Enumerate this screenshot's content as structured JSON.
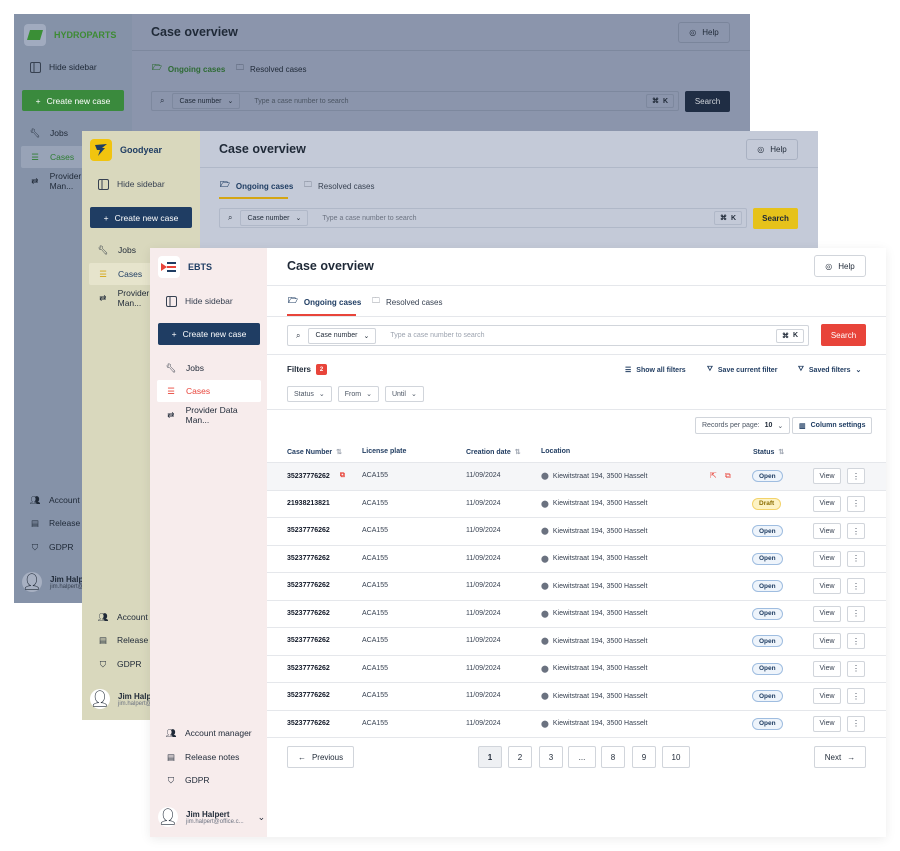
{
  "back": {
    "brand": "HYDROPARTS",
    "hide_sidebar": "Hide sidebar",
    "new_case": "Create new case",
    "nav": [
      "Jobs",
      "Cases",
      "Provider Data Man..."
    ],
    "bottom": [
      "Account manager",
      "Release notes",
      "GDPR"
    ],
    "user_name": "Jim Halpert",
    "user_email": "jim.halpert@office.c...",
    "title": "Case overview",
    "help": "Help",
    "tab_ongoing": "Ongoing cases",
    "tab_resolved": "Resolved cases",
    "select": "Case number",
    "placeholder": "Type a case number to search",
    "kbd": "K",
    "search": "Search"
  },
  "middle": {
    "brand": "Goodyear",
    "hide_sidebar": "Hide sidebar",
    "new_case": "Create new case",
    "nav": [
      "Jobs",
      "Cases",
      "Provider Data Man..."
    ],
    "bottom": [
      "Account manager",
      "Release notes",
      "GDPR"
    ],
    "user_name": "Jim Halpert",
    "user_email": "jim.halpert@office.c...",
    "title": "Case overview",
    "help": "Help",
    "tab_ongoing": "Ongoing cases",
    "tab_resolved": "Resolved cases",
    "select": "Case number",
    "placeholder": "Type a case number to search",
    "kbd": "K",
    "search": "Search"
  },
  "front": {
    "brand": "EBTS",
    "hide_sidebar": "Hide sidebar",
    "new_case": "Create new case",
    "nav": [
      "Jobs",
      "Cases",
      "Provider Data Man..."
    ],
    "bottom": [
      "Account manager",
      "Release notes",
      "GDPR"
    ],
    "user_name": "Jim Halpert",
    "user_email": "jim.halpert@office.c...",
    "title": "Case overview",
    "help": "Help",
    "tab_ongoing": "Ongoing cases",
    "tab_resolved": "Resolved cases",
    "select": "Case number",
    "placeholder": "Type a case number to search",
    "kbd": "K",
    "search": "Search",
    "filters_label": "Filters",
    "filters_count": "2",
    "show_all_filters": "Show all filters",
    "save_current_filter": "Save current filter",
    "saved_filters": "Saved filters",
    "filter_status": "Status",
    "filter_from": "From",
    "filter_until": "Until",
    "records_label": "Records per page:",
    "records_value": "10",
    "column_settings": "Column settings",
    "columns": [
      "Case Number",
      "License plate",
      "Creation date",
      "Location",
      "Status"
    ],
    "rows": [
      {
        "case": "35237776262",
        "plate": "ACA155",
        "date": "11/09/2024",
        "location": "Kiewitstraat 194, 3500 Hasselt",
        "status": "Open"
      },
      {
        "case": "21938213821",
        "plate": "ACA155",
        "date": "11/09/2024",
        "location": "Kiewitstraat 194, 3500 Hasselt",
        "status": "Draft"
      },
      {
        "case": "35237776262",
        "plate": "ACA155",
        "date": "11/09/2024",
        "location": "Kiewitstraat 194, 3500 Hasselt",
        "status": "Open"
      },
      {
        "case": "35237776262",
        "plate": "ACA155",
        "date": "11/09/2024",
        "location": "Kiewitstraat 194, 3500 Hasselt",
        "status": "Open"
      },
      {
        "case": "35237776262",
        "plate": "ACA155",
        "date": "11/09/2024",
        "location": "Kiewitstraat 194, 3500 Hasselt",
        "status": "Open"
      },
      {
        "case": "35237776262",
        "plate": "ACA155",
        "date": "11/09/2024",
        "location": "Kiewitstraat 194, 3500 Hasselt",
        "status": "Open"
      },
      {
        "case": "35237776262",
        "plate": "ACA155",
        "date": "11/09/2024",
        "location": "Kiewitstraat 194, 3500 Hasselt",
        "status": "Open"
      },
      {
        "case": "35237776262",
        "plate": "ACA155",
        "date": "11/09/2024",
        "location": "Kiewitstraat 194, 3500 Hasselt",
        "status": "Open"
      },
      {
        "case": "35237776262",
        "plate": "ACA155",
        "date": "11/09/2024",
        "location": "Kiewitstraat 194, 3500 Hasselt",
        "status": "Open"
      },
      {
        "case": "35237776262",
        "plate": "ACA155",
        "date": "11/09/2024",
        "location": "Kiewitstraat 194, 3500 Hasselt",
        "status": "Open"
      }
    ],
    "view_label": "View",
    "previous": "Previous",
    "next": "Next",
    "pages": [
      "1",
      "2",
      "3",
      "...",
      "8",
      "9",
      "10"
    ]
  },
  "colors": {
    "back_accent": "#2e8b3a",
    "middle_accent": "#e8c21a",
    "front_accent": "#e8443a",
    "navy": "#1f3d63"
  }
}
